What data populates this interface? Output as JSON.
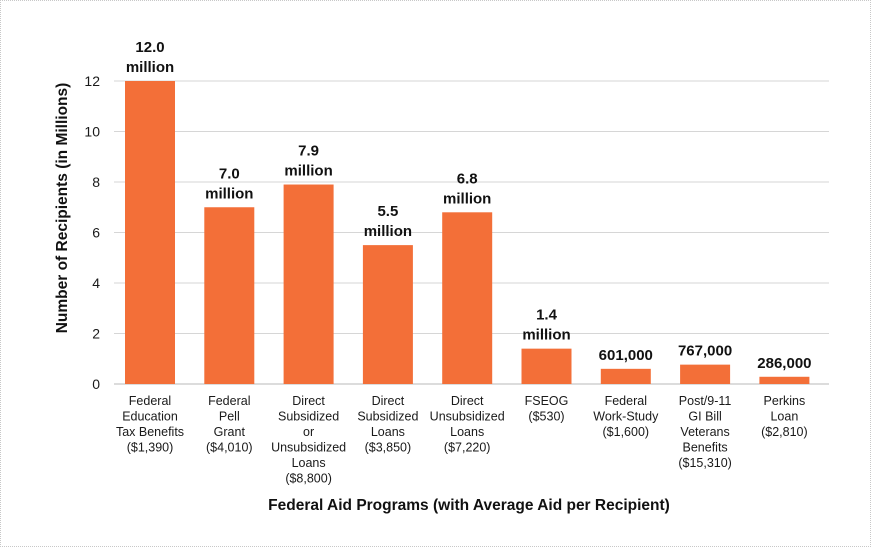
{
  "chart_data": {
    "type": "bar",
    "title": "",
    "xlabel": "Federal Aid Programs (with Average Aid per Recipient)",
    "ylabel": "Number of Recipients (in Millions)",
    "ylim": [
      0,
      12
    ],
    "yticks": [
      0,
      2,
      4,
      6,
      8,
      10,
      12
    ],
    "grid": true,
    "legend": "none",
    "bar_color": "#f36f38",
    "categories": [
      [
        "Federal",
        "Education",
        "Tax Benefits",
        "($1,390)"
      ],
      [
        "Federal",
        "Pell",
        "Grant",
        "($4,010)"
      ],
      [
        "Direct",
        "Subsidized",
        "or",
        "Unsubsidized",
        "Loans",
        "($8,800)"
      ],
      [
        "Direct",
        "Subsidized",
        "Loans",
        "($3,850)"
      ],
      [
        "Direct",
        "Unsubsidized",
        "Loans",
        "($7,220)"
      ],
      [
        "FSEOG",
        "($530)"
      ],
      [
        "Federal",
        "Work-Study",
        "($1,600)"
      ],
      [
        "Post/9-11",
        "GI Bill",
        "Veterans",
        "Benefits",
        "($15,310)"
      ],
      [
        "Perkins",
        "Loan",
        "($2,810)"
      ]
    ],
    "values": [
      12.0,
      7.0,
      7.9,
      5.5,
      6.8,
      1.4,
      0.601,
      0.767,
      0.286
    ],
    "data_labels": [
      [
        "12.0",
        "million"
      ],
      [
        "7.0",
        "million"
      ],
      [
        "7.9",
        "million"
      ],
      [
        "5.5",
        "million"
      ],
      [
        "6.8",
        "million"
      ],
      [
        "1.4",
        "million"
      ],
      [
        "601,000"
      ],
      [
        "767,000"
      ],
      [
        "286,000"
      ]
    ]
  }
}
